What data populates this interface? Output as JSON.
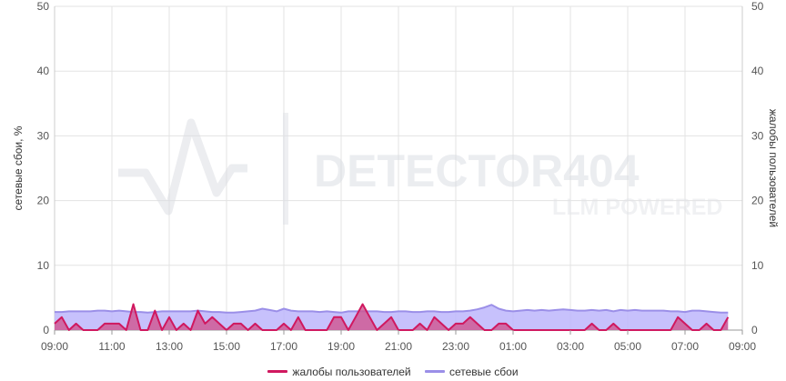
{
  "watermark": {
    "title": "DETECTOR404",
    "subtitle": "LLM POWERED"
  },
  "chart_data": {
    "type": "area",
    "ylabel_left": "сетевые сбои, %",
    "ylabel_right": "жалобы пользователей",
    "ylim": [
      0,
      50
    ],
    "y_ticks": [
      "0",
      "10",
      "20",
      "30",
      "40",
      "50"
    ],
    "x_ticks": [
      "09:00",
      "11:00",
      "13:00",
      "15:00",
      "17:00",
      "19:00",
      "21:00",
      "23:00",
      "01:00",
      "03:00",
      "05:00",
      "07:00",
      "09:00"
    ],
    "grid": true,
    "legend_placement": "bottom",
    "x": [
      "09:00",
      "09:15",
      "09:30",
      "09:45",
      "10:00",
      "10:15",
      "10:30",
      "10:45",
      "11:00",
      "11:15",
      "11:30",
      "11:45",
      "12:00",
      "12:15",
      "12:30",
      "12:45",
      "13:00",
      "13:15",
      "13:30",
      "13:45",
      "14:00",
      "14:15",
      "14:30",
      "14:45",
      "15:00",
      "15:15",
      "15:30",
      "15:45",
      "16:00",
      "16:15",
      "16:30",
      "16:45",
      "17:00",
      "17:15",
      "17:30",
      "17:45",
      "18:00",
      "18:15",
      "18:30",
      "18:45",
      "19:00",
      "19:15",
      "19:30",
      "19:45",
      "20:00",
      "20:15",
      "20:30",
      "20:45",
      "21:00",
      "21:15",
      "21:30",
      "21:45",
      "22:00",
      "22:15",
      "22:30",
      "22:45",
      "23:00",
      "23:15",
      "23:30",
      "23:45",
      "00:00",
      "00:15",
      "00:30",
      "00:45",
      "01:00",
      "01:15",
      "01:30",
      "01:45",
      "02:00",
      "02:15",
      "02:30",
      "02:45",
      "03:00",
      "03:15",
      "03:30",
      "03:45",
      "04:00",
      "04:15",
      "04:30",
      "04:45",
      "05:00",
      "05:15",
      "05:30",
      "05:45",
      "06:00",
      "06:15",
      "06:30",
      "06:45",
      "07:00",
      "07:15",
      "07:30",
      "07:45",
      "08:00",
      "08:15",
      "08:30"
    ],
    "series": [
      {
        "name": "жалобы пользователей",
        "axis": "right",
        "color": "#d0185f",
        "fill": "#d0548f",
        "values": [
          1,
          2,
          0,
          1,
          0,
          0,
          0,
          1,
          1,
          1,
          0,
          4,
          0,
          0,
          3,
          0,
          2,
          0,
          1,
          0,
          3,
          1,
          2,
          1,
          0,
          1,
          1,
          0,
          1,
          0,
          0,
          0,
          1,
          0,
          2,
          0,
          0,
          0,
          0,
          2,
          2,
          0,
          2,
          4,
          2,
          0,
          1,
          2,
          0,
          0,
          0,
          1,
          0,
          2,
          1,
          0,
          1,
          1,
          2,
          1,
          0,
          0,
          1,
          1,
          0,
          0,
          0,
          0,
          0,
          0,
          0,
          0,
          0,
          0,
          0,
          1,
          0,
          0,
          1,
          0,
          0,
          0,
          0,
          0,
          0,
          0,
          0,
          2,
          1,
          0,
          0,
          1,
          0,
          0,
          2
        ]
      },
      {
        "name": "сетевые сбои",
        "axis": "left",
        "color": "#9b8fe8",
        "fill": "#bdb6fb",
        "values": [
          2.8,
          2.8,
          2.9,
          2.9,
          2.9,
          2.9,
          3.0,
          3.0,
          2.9,
          3.0,
          2.9,
          2.8,
          2.8,
          2.7,
          2.8,
          2.9,
          2.9,
          2.9,
          2.9,
          2.9,
          3.0,
          2.9,
          2.8,
          2.8,
          2.7,
          2.7,
          2.8,
          2.9,
          3.0,
          3.3,
          3.1,
          2.9,
          3.3,
          3.0,
          2.9,
          2.9,
          2.9,
          2.8,
          2.9,
          2.8,
          2.7,
          2.9,
          2.9,
          2.9,
          2.9,
          2.9,
          2.8,
          2.8,
          2.9,
          2.9,
          2.8,
          2.8,
          2.9,
          2.9,
          2.8,
          2.8,
          2.9,
          2.9,
          3.0,
          3.2,
          3.5,
          3.9,
          3.3,
          3.0,
          2.9,
          3.0,
          3.1,
          3.0,
          3.1,
          3.0,
          3.1,
          3.2,
          3.1,
          3.0,
          3.0,
          3.1,
          3.0,
          3.1,
          2.9,
          3.1,
          3.0,
          3.1,
          3.0,
          3.0,
          3.0,
          3.0,
          2.9,
          2.9,
          2.8,
          3.0,
          3.0,
          2.9,
          2.8,
          2.7,
          2.7
        ]
      }
    ]
  }
}
